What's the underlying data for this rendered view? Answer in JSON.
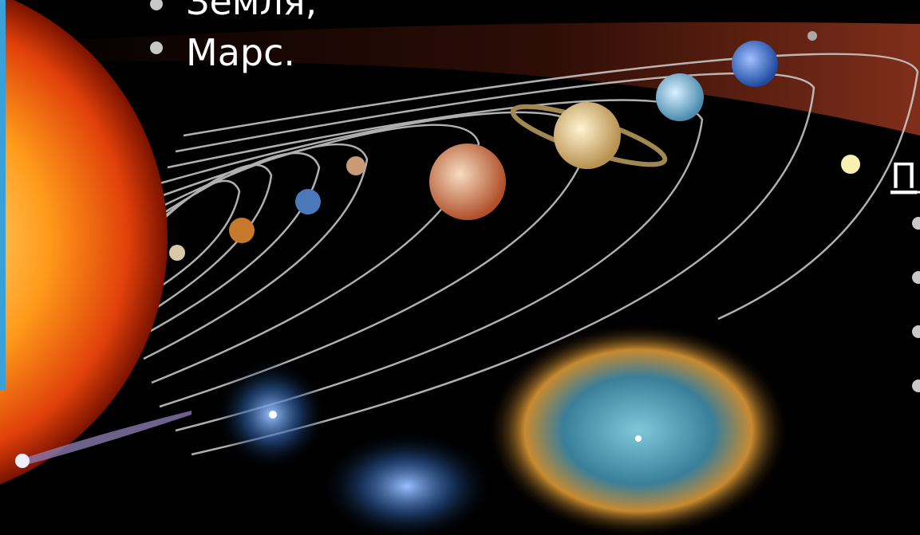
{
  "slide": {
    "bullets": [
      "Земля,",
      "Марс."
    ],
    "heading_fragment": "П"
  }
}
